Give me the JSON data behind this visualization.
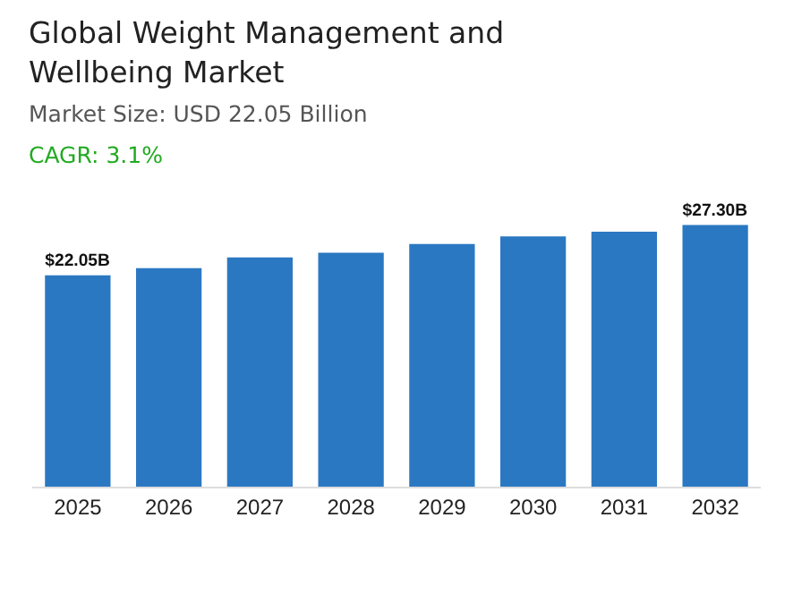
{
  "chart_data": {
    "type": "bar",
    "title": "Global Weight Management and Wellbeing Market",
    "subtitle": "Market Size: USD 22.05 Billion",
    "annotations": [
      "CAGR: 3.1%"
    ],
    "categories": [
      "2025",
      "2026",
      "2027",
      "2028",
      "2029",
      "2030",
      "2031",
      "2032"
    ],
    "values": [
      22.05,
      22.8,
      23.9,
      24.4,
      25.3,
      26.1,
      26.6,
      27.3
    ],
    "value_labels": [
      "$22.05B",
      null,
      null,
      null,
      null,
      null,
      null,
      "$27.30B"
    ],
    "color": "#2b78c2"
  }
}
